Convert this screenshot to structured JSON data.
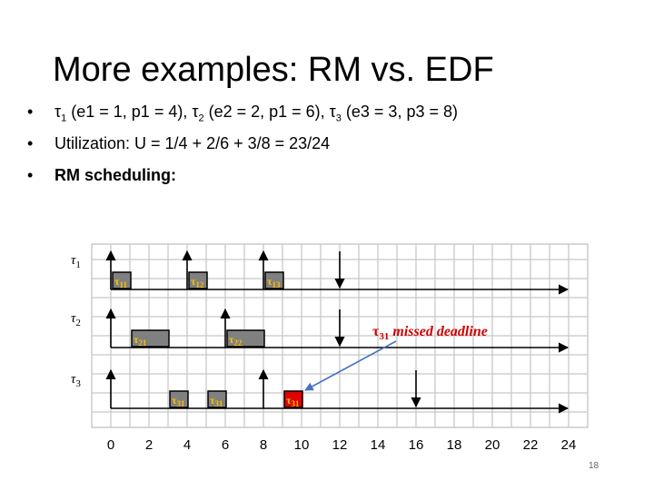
{
  "slide": {
    "title": "More examples: RM vs. EDF",
    "bullets": [
      {
        "html": "τ<sub>1</sub> (e1 = 1, p1 = 4), τ<sub>2</sub> (e2 = 2, p1 = 6), τ<sub>3</sub> (e3 = 3, p3 = 8)"
      },
      {
        "html": "Utilization: U = 1/4 + 2/6 + 3/8 = 23/24"
      },
      {
        "html": "<b>RM scheduling:</b>"
      }
    ],
    "page_number": "18"
  },
  "diagram": {
    "x_ticks": [
      "0",
      "2",
      "4",
      "6",
      "8",
      "10",
      "12",
      "14",
      "16",
      "18",
      "20",
      "22",
      "24"
    ],
    "tasks": [
      {
        "label": "τ",
        "sub": "1",
        "period": 4,
        "deadlines": [
          12
        ]
      },
      {
        "label": "τ",
        "sub": "2",
        "period": 6,
        "deadlines": [
          12
        ]
      },
      {
        "label": "τ",
        "sub": "3",
        "period": 8,
        "deadlines": [
          16
        ]
      }
    ],
    "jobs": [
      {
        "task": 0,
        "start": 0,
        "end": 1,
        "label": "τ",
        "sub": "11",
        "missed": false
      },
      {
        "task": 0,
        "start": 4,
        "end": 5,
        "label": "τ",
        "sub": "12",
        "missed": false
      },
      {
        "task": 0,
        "start": 8,
        "end": 9,
        "label": "τ",
        "sub": "13",
        "missed": false
      },
      {
        "task": 1,
        "start": 1,
        "end": 3,
        "label": "τ",
        "sub": "21",
        "missed": false
      },
      {
        "task": 1,
        "start": 6,
        "end": 8,
        "label": "τ",
        "sub": "22",
        "missed": false
      },
      {
        "task": 2,
        "start": 3,
        "end": 4,
        "label": "τ",
        "sub": "31",
        "missed": false
      },
      {
        "task": 2,
        "start": 5,
        "end": 6,
        "label": "τ",
        "sub": "31",
        "missed": false
      },
      {
        "task": 2,
        "start": 9,
        "end": 10,
        "label": "τ",
        "sub": "31",
        "missed": true
      }
    ],
    "annotation": {
      "label": "τ",
      "sub": "31",
      "text": " missed deadline",
      "color": "#cc0000"
    },
    "colors": {
      "job": "#808080",
      "missed": "#e00000",
      "job_label": "#ffc000",
      "grid": "#c8c8c8",
      "arrow": "#4472c4"
    }
  }
}
